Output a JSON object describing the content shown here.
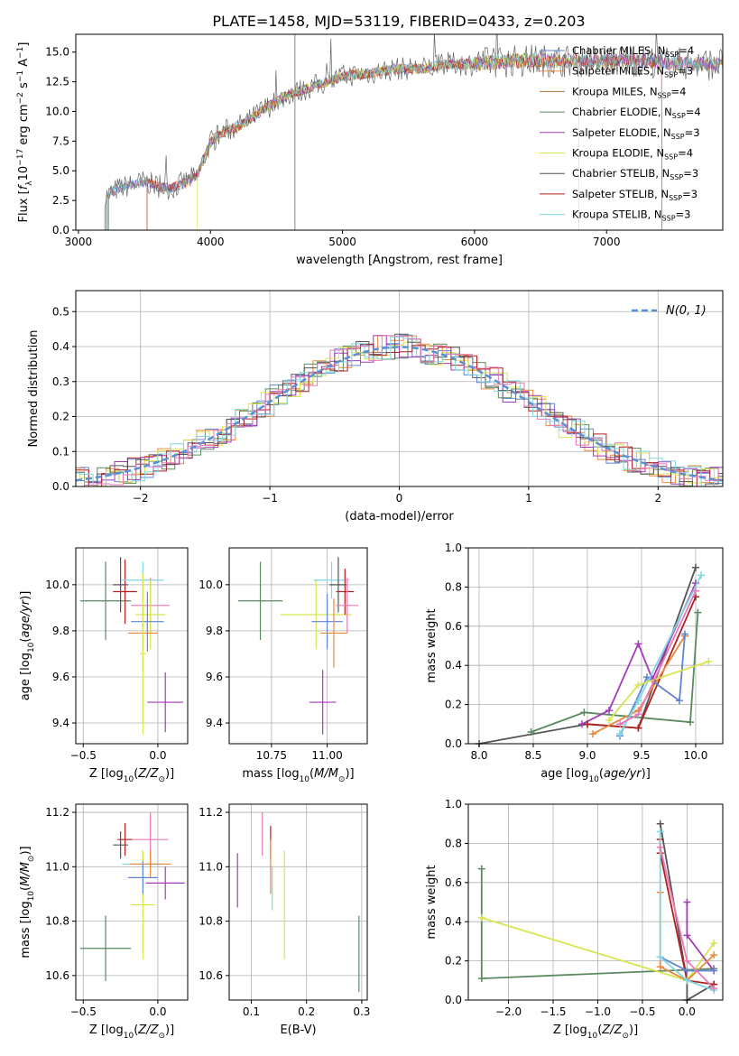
{
  "figure": {
    "title": "PLATE=1458, MJD=53119, FIBERID=0433, z=0.203"
  },
  "colors": {
    "grid": "#b0b0b0",
    "gauss": "#5b8fd6"
  },
  "chart_data": [
    {
      "id": "spectrum",
      "type": "line",
      "xlabel": "wavelength [Angstrom, rest frame]",
      "ylabel": "Flux [f_λ 10^-17 erg cm^-2 s^-1 A^-1]",
      "xlim": [
        2980,
        7880
      ],
      "ylim": [
        0,
        16.5
      ],
      "xticks": [
        3000,
        4000,
        5000,
        6000,
        7000
      ],
      "yticks": [
        0.0,
        2.5,
        5.0,
        7.5,
        10.0,
        12.5,
        15.0
      ],
      "legend_position": "top-right",
      "legend": [
        {
          "label": "Chabrier MILES, N_SSP=4",
          "color": "#5f85d6"
        },
        {
          "label": "Salpeter MILES, N_SSP=3",
          "color": "#e88a3c"
        },
        {
          "label": "Kroupa MILES, N_SSP=4",
          "color": "#b5752f"
        },
        {
          "label": "Chabrier ELODIE, N_SSP=4",
          "color": "#5a8a5f"
        },
        {
          "label": "Salpeter ELODIE, N_SSP=3",
          "color": "#a33ab8"
        },
        {
          "label": "Kroupa ELODIE, N_SSP=4",
          "color": "#d8e54f"
        },
        {
          "label": "Chabrier STELIB, N_SSP=3",
          "color": "#555555"
        },
        {
          "label": "Salpeter STELIB, N_SSP=3",
          "color": "#b21f1f"
        },
        {
          "label": "Kroupa STELIB, N_SSP=3",
          "color": "#7fd8e0"
        }
      ],
      "envelope": {
        "x": [
          3200,
          3300,
          3400,
          3500,
          3600,
          3700,
          3800,
          3900,
          4000,
          4100,
          4200,
          4300,
          4400,
          4500,
          4600,
          4700,
          4800,
          4900,
          5000,
          5200,
          5400,
          5600,
          5800,
          6000,
          6200,
          6400,
          6600,
          6800,
          7000,
          7200,
          7400,
          7600,
          7800
        ],
        "y": [
          2.8,
          3.5,
          3.8,
          4.1,
          3.7,
          3.5,
          4.0,
          4.6,
          7.4,
          8.3,
          8.7,
          9.3,
          10.2,
          10.8,
          11.5,
          11.8,
          12.2,
          12.5,
          13.0,
          13.2,
          13.6,
          13.6,
          14.0,
          14.0,
          14.2,
          14.3,
          14.3,
          14.2,
          14.2,
          14.3,
          14.2,
          14.0,
          14.0
        ]
      },
      "spike_x": 4640
    },
    {
      "id": "residuals",
      "type": "histogram",
      "xlabel": "(data-model)/error",
      "ylabel": "Normed distribution",
      "xlim": [
        -2.5,
        2.5
      ],
      "ylim": [
        0,
        0.56
      ],
      "xticks": [
        -2,
        -1,
        0,
        1,
        2
      ],
      "yticks": [
        0.0,
        0.1,
        0.2,
        0.3,
        0.4,
        0.5
      ],
      "legend_position": "top-right",
      "legend": [
        {
          "label": "N(0, 1)",
          "color": "#5b8fd6"
        }
      ],
      "series_colors": [
        "#5f85d6",
        "#e88a3c",
        "#5a8a5f",
        "#a33ab8",
        "#d8e54f",
        "#555555",
        "#b21f1f",
        "#7fd8e0",
        "#e67ab8"
      ]
    },
    {
      "id": "age_vs_Z",
      "type": "errorbar",
      "xlabel": "Z [log10(Z/Z_sun)]",
      "ylabel": "age [log10(age/yr)]",
      "xlim": [
        -0.55,
        0.2
      ],
      "ylim": [
        9.31,
        10.16
      ],
      "xticks": [
        -0.5,
        0.0
      ],
      "yticks": [
        9.4,
        9.6,
        9.8,
        10.0
      ],
      "points": [
        {
          "x": -0.35,
          "y": 9.93,
          "xerr": 0.17,
          "yerr": 0.17,
          "color": "#5a8a5f"
        },
        {
          "x": -0.22,
          "y": 9.97,
          "xerr": 0.08,
          "yerr": 0.14,
          "color": "#b21f1f"
        },
        {
          "x": -0.25,
          "y": 10.0,
          "xerr": 0.05,
          "yerr": 0.12,
          "color": "#555555"
        },
        {
          "x": -0.1,
          "y": 10.02,
          "xerr": 0.14,
          "yerr": 0.08,
          "color": "#7fd8e0"
        },
        {
          "x": -0.05,
          "y": 9.91,
          "xerr": 0.13,
          "yerr": 0.12,
          "color": "#e67ab8"
        },
        {
          "x": -0.05,
          "y": 9.87,
          "xerr": 0.1,
          "yerr": 0.15,
          "color": "#d8e54f"
        },
        {
          "x": -0.07,
          "y": 9.84,
          "xerr": 0.11,
          "yerr": 0.13,
          "color": "#5f85d6"
        },
        {
          "x": -0.1,
          "y": 9.79,
          "xerr": 0.1,
          "yerr": 0.17,
          "color": "#e88a3c"
        },
        {
          "x": -0.1,
          "y": 9.7,
          "xerr": 0.02,
          "yerr": 0.35,
          "color": "#d8e54f"
        },
        {
          "x": 0.05,
          "y": 9.49,
          "xerr": 0.12,
          "yerr": 0.13,
          "color": "#a33ab8"
        }
      ]
    },
    {
      "id": "age_vs_mass",
      "type": "errorbar",
      "xlabel": "mass [log10(M/M_sun)]",
      "ylabel": "",
      "xlim": [
        10.56,
        11.18
      ],
      "ylim": [
        9.31,
        10.16
      ],
      "xticks": [
        10.75,
        11.0
      ],
      "xticklabels": [
        "10.75",
        "11.00"
      ],
      "yticks": [
        9.4,
        9.6,
        9.8,
        10.0
      ],
      "points": [
        {
          "x": 10.7,
          "y": 9.93,
          "xerr": 0.1,
          "yerr": 0.17,
          "color": "#5a8a5f"
        },
        {
          "x": 10.95,
          "y": 9.87,
          "xerr": 0.16,
          "yerr": 0.15,
          "color": "#d8e54f"
        },
        {
          "x": 11.02,
          "y": 10.02,
          "xerr": 0.08,
          "yerr": 0.08,
          "color": "#7fd8e0"
        },
        {
          "x": 11.08,
          "y": 9.97,
          "xerr": 0.04,
          "yerr": 0.1,
          "color": "#b21f1f"
        },
        {
          "x": 11.05,
          "y": 10.0,
          "xerr": 0.04,
          "yerr": 0.12,
          "color": "#555555"
        },
        {
          "x": 11.09,
          "y": 9.91,
          "xerr": 0.05,
          "yerr": 0.12,
          "color": "#e67ab8"
        },
        {
          "x": 11.0,
          "y": 9.84,
          "xerr": 0.07,
          "yerr": 0.12,
          "color": "#5f85d6"
        },
        {
          "x": 11.03,
          "y": 9.79,
          "xerr": 0.06,
          "yerr": 0.15,
          "color": "#e88a3c"
        },
        {
          "x": 10.98,
          "y": 9.49,
          "xerr": 0.06,
          "yerr": 0.14,
          "color": "#a33ab8"
        }
      ]
    },
    {
      "id": "weight_vs_age",
      "type": "line",
      "xlabel": "age [log10(age/yr)]",
      "ylabel": "mass weight",
      "xlim": [
        7.9,
        10.25
      ],
      "ylim": [
        0,
        1.0
      ],
      "xticks": [
        8.0,
        8.5,
        9.0,
        9.5,
        10.0
      ],
      "yticks": [
        0.0,
        0.2,
        0.4,
        0.6,
        0.8,
        1.0
      ],
      "series": [
        {
          "color": "#555555",
          "x": [
            8.0,
            9.0,
            9.47,
            10.0
          ],
          "y": [
            0.0,
            0.1,
            0.08,
            0.9
          ]
        },
        {
          "color": "#5a8a5f",
          "x": [
            8.48,
            8.97,
            9.95,
            10.02
          ],
          "y": [
            0.06,
            0.16,
            0.11,
            0.67
          ]
        },
        {
          "color": "#a33ab8",
          "x": [
            8.95,
            9.2,
            9.47,
            9.6,
            10.0
          ],
          "y": [
            0.1,
            0.17,
            0.51,
            0.33,
            0.82
          ]
        },
        {
          "color": "#b21f1f",
          "x": [
            9.0,
            9.47,
            10.0
          ],
          "y": [
            0.1,
            0.08,
            0.75
          ]
        },
        {
          "color": "#e88a3c",
          "x": [
            9.05,
            9.47,
            9.9
          ],
          "y": [
            0.05,
            0.17,
            0.55
          ]
        },
        {
          "color": "#5f85d6",
          "x": [
            9.3,
            9.55,
            9.85,
            9.9
          ],
          "y": [
            0.04,
            0.34,
            0.22,
            0.56
          ]
        },
        {
          "color": "#7fd8e0",
          "x": [
            9.3,
            9.47,
            10.05
          ],
          "y": [
            0.05,
            0.22,
            0.86
          ]
        },
        {
          "color": "#d8e54f",
          "x": [
            9.2,
            9.47,
            10.12
          ],
          "y": [
            0.12,
            0.3,
            0.42
          ]
        },
        {
          "color": "#e67ab8",
          "x": [
            9.3,
            9.47,
            10.0
          ],
          "y": [
            0.1,
            0.15,
            0.78
          ]
        }
      ]
    },
    {
      "id": "mass_vs_Z",
      "type": "errorbar",
      "xlabel": "Z [log10(Z/Z_sun)]",
      "ylabel": "mass [log10(M/M_sun)]",
      "xlim": [
        -0.55,
        0.2
      ],
      "ylim": [
        10.51,
        11.23
      ],
      "xticks": [
        -0.5,
        0.0
      ],
      "yticks": [
        10.6,
        10.8,
        11.0,
        11.2
      ],
      "points": [
        {
          "x": -0.35,
          "y": 10.7,
          "xerr": 0.17,
          "yerr": 0.12,
          "color": "#5a8a5f"
        },
        {
          "x": -0.22,
          "y": 11.1,
          "xerr": 0.05,
          "yerr": 0.06,
          "color": "#b21f1f"
        },
        {
          "x": -0.25,
          "y": 11.08,
          "xerr": 0.05,
          "yerr": 0.05,
          "color": "#555555"
        },
        {
          "x": -0.1,
          "y": 11.01,
          "xerr": 0.14,
          "yerr": 0.05,
          "color": "#7fd8e0"
        },
        {
          "x": -0.05,
          "y": 11.1,
          "xerr": 0.12,
          "yerr": 0.1,
          "color": "#e67ab8"
        },
        {
          "x": -0.1,
          "y": 10.86,
          "xerr": 0.08,
          "yerr": 0.2,
          "color": "#d8e54f"
        },
        {
          "x": -0.1,
          "y": 10.96,
          "xerr": 0.1,
          "yerr": 0.06,
          "color": "#5f85d6"
        },
        {
          "x": -0.05,
          "y": 11.01,
          "xerr": 0.14,
          "yerr": 0.05,
          "color": "#e88a3c"
        },
        {
          "x": 0.05,
          "y": 10.94,
          "xerr": 0.13,
          "yerr": 0.06,
          "color": "#a33ab8"
        }
      ]
    },
    {
      "id": "mass_vs_EBV",
      "type": "errorbar",
      "xlabel": "E(B-V)",
      "ylabel": "",
      "xlim": [
        0.06,
        0.31
      ],
      "ylim": [
        10.51,
        11.23
      ],
      "xticks": [
        0.1,
        0.2,
        0.3
      ],
      "yticks": [
        10.6,
        10.8,
        11.0,
        11.2
      ],
      "points": [
        {
          "x": 0.075,
          "y": 10.95,
          "xerr": 0.0,
          "yerr": 0.1,
          "color": "#a33ab8"
        },
        {
          "x": 0.12,
          "y": 11.12,
          "xerr": 0.0,
          "yerr": 0.08,
          "color": "#e67ab8"
        },
        {
          "x": 0.135,
          "y": 11.09,
          "xerr": 0.0,
          "yerr": 0.06,
          "color": "#b21f1f"
        },
        {
          "x": 0.135,
          "y": 11.0,
          "xerr": 0.0,
          "yerr": 0.1,
          "color": "#e88a3c"
        },
        {
          "x": 0.138,
          "y": 10.92,
          "xerr": 0.0,
          "yerr": 0.08,
          "color": "#7fd8e0"
        },
        {
          "x": 0.16,
          "y": 10.86,
          "xerr": 0.0,
          "yerr": 0.2,
          "color": "#d8e54f"
        },
        {
          "x": 0.295,
          "y": 10.68,
          "xerr": 0.0,
          "yerr": 0.14,
          "color": "#5a8a5f"
        }
      ]
    },
    {
      "id": "weight_vs_Z",
      "type": "line",
      "xlabel": "Z [log10(Z/Z_sun)]",
      "ylabel": "mass weight",
      "xlim": [
        -2.45,
        0.4
      ],
      "ylim": [
        0,
        1.0
      ],
      "xticks": [
        -2.0,
        -1.5,
        -1.0,
        -0.5,
        0.0
      ],
      "yticks": [
        0.0,
        0.2,
        0.4,
        0.6,
        0.8,
        1.0
      ],
      "series": [
        {
          "color": "#555555",
          "x": [
            -0.3,
            0.0,
            0.0,
            0.3
          ],
          "y": [
            0.9,
            0.1,
            0.0,
            0.08
          ]
        },
        {
          "color": "#5a8a5f",
          "x": [
            -2.3,
            -2.3,
            0.3
          ],
          "y": [
            0.67,
            0.11,
            0.16
          ]
        },
        {
          "color": "#d8e54f",
          "x": [
            -2.3,
            0.0,
            0.3
          ],
          "y": [
            0.42,
            0.1,
            0.29
          ]
        },
        {
          "color": "#a33ab8",
          "x": [
            0.0,
            0.0,
            0.3
          ],
          "y": [
            0.5,
            0.33,
            0.15
          ]
        },
        {
          "color": "#b21f1f",
          "x": [
            -0.3,
            -0.3,
            0.0,
            0.3
          ],
          "y": [
            0.82,
            0.75,
            0.1,
            0.08
          ]
        },
        {
          "color": "#e88a3c",
          "x": [
            -0.3,
            -0.3,
            0.0,
            0.3
          ],
          "y": [
            0.55,
            0.17,
            0.1,
            0.23
          ]
        },
        {
          "color": "#5f85d6",
          "x": [
            -0.3,
            0.0,
            0.3
          ],
          "y": [
            0.22,
            0.15,
            0.15
          ]
        },
        {
          "color": "#7fd8e0",
          "x": [
            -0.3,
            -0.3,
            0.0,
            0.3
          ],
          "y": [
            0.86,
            0.22,
            0.1,
            0.05
          ]
        },
        {
          "color": "#e67ab8",
          "x": [
            -0.3,
            0.0,
            0.3
          ],
          "y": [
            0.78,
            0.2,
            0.06
          ]
        }
      ]
    }
  ]
}
